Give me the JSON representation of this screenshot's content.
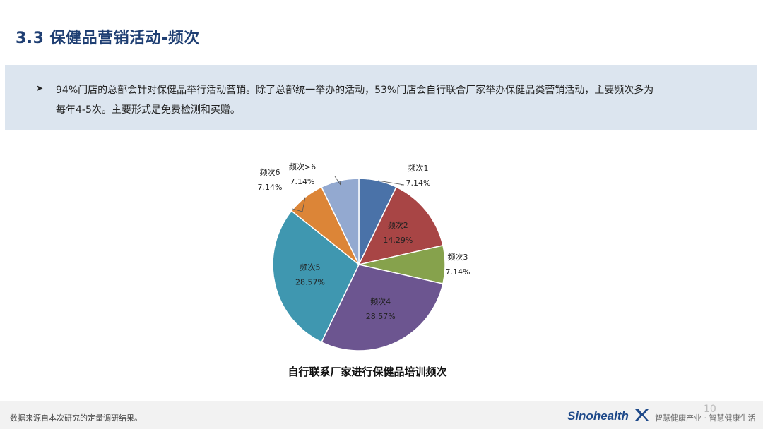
{
  "page": {
    "title": "3.3 保健品营销活动-频次",
    "summary": "94%门店的总部会针对保健品举行活动营销。除了总部统一举办的活动，53%门店会自行联合厂家举办保健品类营销活动，主要频次多为每年4-5次。主要形式是免费检测和买赠。",
    "bullet_icon": "arrowhead-bullet-icon"
  },
  "chart_data": {
    "type": "pie",
    "title": "自行联系厂家进行保健品培训频次",
    "legend": "none",
    "slices": [
      {
        "label": "频次1",
        "value": 7.14,
        "value_label": "7.14%",
        "color": "#4a72a8"
      },
      {
        "label": "频次2",
        "value": 14.29,
        "value_label": "14.29%",
        "color": "#a84545"
      },
      {
        "label": "频次3",
        "value": 7.14,
        "value_label": "7.14%",
        "color": "#86a24c"
      },
      {
        "label": "频次4",
        "value": 28.57,
        "value_label": "28.57%",
        "color": "#6c5590"
      },
      {
        "label": "频次5",
        "value": 28.57,
        "value_label": "28.57%",
        "color": "#3f97b0"
      },
      {
        "label": "频次6",
        "value": 7.14,
        "value_label": "7.14%",
        "color": "#dc8537"
      },
      {
        "label": "频次>6",
        "value": 7.14,
        "value_label": "7.14%",
        "color": "#93a9d0"
      }
    ]
  },
  "footer": {
    "note": "数据来源自本次研究的定量调研结果。",
    "page_number": "10",
    "brand": "Sinohealth",
    "brand_icon": "sinohealth-x-logo-icon",
    "slogan": "智慧健康产业 · 智慧健康生活"
  }
}
